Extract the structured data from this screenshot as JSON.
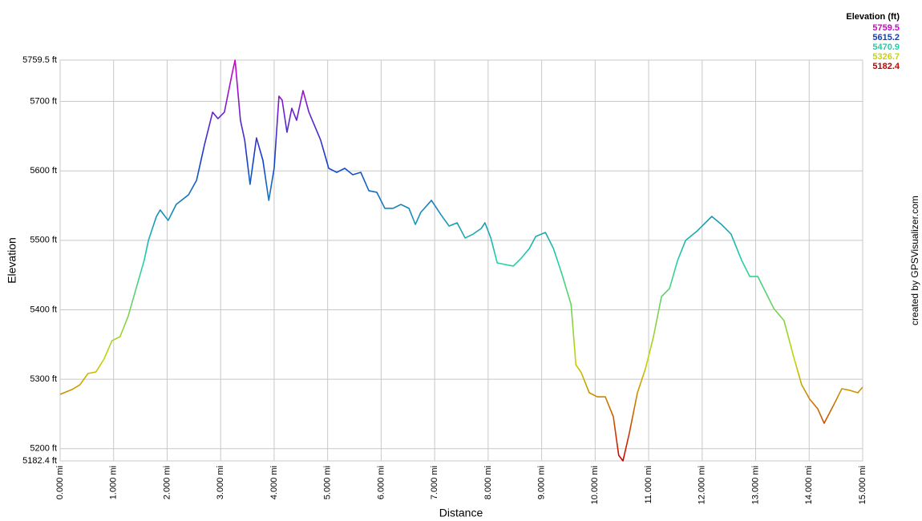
{
  "chart_data": {
    "type": "line",
    "x_label": "Distance",
    "y_label": "Elevation",
    "credit": "created by GPSVisualizer.com",
    "legend_title": "Elevation (ft)",
    "color_scale": [
      {
        "value": 5759.5,
        "color": "#d000d0"
      },
      {
        "value": 5615.2,
        "color": "#1040c8"
      },
      {
        "value": 5470.9,
        "color": "#20d0a8"
      },
      {
        "value": 5326.7,
        "color": "#c8d400"
      },
      {
        "value": 5182.4,
        "color": "#cc0000"
      }
    ],
    "xlim": [
      0,
      15
    ],
    "ylim": [
      5182.4,
      5759.5
    ],
    "grid": true,
    "xticks": [
      {
        "value": 0,
        "label": "0.000 mi"
      },
      {
        "value": 1,
        "label": "1.000 mi"
      },
      {
        "value": 2,
        "label": "2.000 mi"
      },
      {
        "value": 3,
        "label": "3.000 mi"
      },
      {
        "value": 4,
        "label": "4.000 mi"
      },
      {
        "value": 5,
        "label": "5.000 mi"
      },
      {
        "value": 6,
        "label": "6.000 mi"
      },
      {
        "value": 7,
        "label": "7.000 mi"
      },
      {
        "value": 8,
        "label": "8.000 mi"
      },
      {
        "value": 9,
        "label": "9.000 mi"
      },
      {
        "value": 10,
        "label": "10.000 mi"
      },
      {
        "value": 11,
        "label": "11.000 mi"
      },
      {
        "value": 12,
        "label": "12.000 mi"
      },
      {
        "value": 13,
        "label": "13.000 mi"
      },
      {
        "value": 14,
        "label": "14.000 mi"
      },
      {
        "value": 15,
        "label": "15.000 mi"
      }
    ],
    "yticks": [
      {
        "value": 5182.4,
        "label": "5182.4 ft"
      },
      {
        "value": 5200,
        "label": "5200 ft"
      },
      {
        "value": 5300,
        "label": "5300 ft"
      },
      {
        "value": 5400,
        "label": "5400 ft"
      },
      {
        "value": 5500,
        "label": "5500 ft"
      },
      {
        "value": 5600,
        "label": "5600 ft"
      },
      {
        "value": 5700,
        "label": "5700 ft"
      },
      {
        "value": 5759.5,
        "label": "5759.5 ft"
      }
    ],
    "x": [
      0,
      0.22,
      0.37,
      0.52,
      0.67,
      0.82,
      0.97,
      1.12,
      1.27,
      1.42,
      1.57,
      1.65,
      1.8,
      1.87,
      2.02,
      2.17,
      2.4,
      2.55,
      2.7,
      2.85,
      2.95,
      3.07,
      3.22,
      3.27,
      3.37,
      3.45,
      3.55,
      3.67,
      3.79,
      3.9,
      4.0,
      4.09,
      4.15,
      4.24,
      4.33,
      4.42,
      4.54,
      4.65,
      4.87,
      5.02,
      5.17,
      5.32,
      5.47,
      5.62,
      5.77,
      5.92,
      6.07,
      6.22,
      6.37,
      6.52,
      6.64,
      6.74,
      6.94,
      7.12,
      7.27,
      7.42,
      7.57,
      7.72,
      7.87,
      7.94,
      8.05,
      8.17,
      8.32,
      8.47,
      8.62,
      8.77,
      8.89,
      9.07,
      9.22,
      9.37,
      9.55,
      9.64,
      9.74,
      9.89,
      10.04,
      10.19,
      10.34,
      10.44,
      10.52,
      10.64,
      10.79,
      10.94,
      11.09,
      11.24,
      11.39,
      11.54,
      11.69,
      11.91,
      12.18,
      12.36,
      12.54,
      12.74,
      12.89,
      13.04,
      13.19,
      13.34,
      13.53,
      13.71,
      13.86,
      14.01,
      14.16,
      14.28,
      14.46,
      14.61,
      14.76,
      14.91,
      15.0
    ],
    "values": [
      5278.2,
      5285.1,
      5292.0,
      5308.2,
      5310.5,
      5329.0,
      5355.5,
      5361.3,
      5390.2,
      5430.6,
      5470.9,
      5499.8,
      5534.4,
      5543.7,
      5528.7,
      5551.7,
      5565.6,
      5586.4,
      5638.3,
      5684.5,
      5675.2,
      5684.5,
      5742.2,
      5759.5,
      5672.9,
      5644.1,
      5580.6,
      5647.5,
      5615.2,
      5557.5,
      5603.7,
      5707.6,
      5701.8,
      5655.6,
      5690.2,
      5672.9,
      5715.6,
      5684.5,
      5644.1,
      5603.7,
      5597.9,
      5603.7,
      5594.5,
      5597.9,
      5571.4,
      5569.1,
      5546.0,
      5546.0,
      5551.7,
      5546.0,
      5522.9,
      5540.2,
      5557.5,
      5536.7,
      5520.6,
      5525.2,
      5503.3,
      5509.0,
      5517.1,
      5525.2,
      5503.3,
      5467.5,
      5465.2,
      5462.9,
      5474.4,
      5488.3,
      5505.6,
      5511.3,
      5488.3,
      5453.6,
      5407.5,
      5320.9,
      5309.4,
      5280.5,
      5274.7,
      5274.7,
      5245.9,
      5190.5,
      5182.4,
      5222.8,
      5280.5,
      5315.1,
      5361.3,
      5419.0,
      5430.6,
      5470.9,
      5499.8,
      5513.7,
      5534.4,
      5522.9,
      5509.0,
      5470.9,
      5447.9,
      5447.9,
      5424.8,
      5401.7,
      5384.4,
      5332.4,
      5292.0,
      5271.3,
      5257.4,
      5236.6,
      5263.2,
      5286.3,
      5284.0,
      5280.5,
      5288.6
    ]
  }
}
